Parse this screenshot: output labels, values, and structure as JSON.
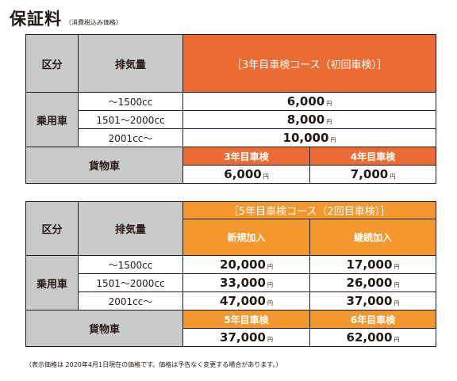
{
  "title": "保証料",
  "title_note": "（消費税込み価格）",
  "colors": {
    "gray": "#c9caca",
    "orange_dark": "#ea6c32",
    "orange_light": "#f2982f",
    "border": "#231815"
  },
  "yen": "円",
  "table1": {
    "col_category": "区分",
    "col_displacement": "排気量",
    "plan_header": "［3年目車検コース（初回車検）］",
    "passenger_label": "乗用車",
    "rows": [
      {
        "displacement": "～1500cc",
        "price": "6,000"
      },
      {
        "displacement": "1501～2000cc",
        "price": "8,000"
      },
      {
        "displacement": "2001cc～",
        "price": "10,000"
      }
    ],
    "cargo_label": "貨物車",
    "cargo_headers": [
      "3年目車検",
      "4年目車検"
    ],
    "cargo_prices": [
      "6,000",
      "7,000"
    ]
  },
  "table2": {
    "col_category": "区分",
    "col_displacement": "排気量",
    "plan_header": "［5年目車検コース（2回目車検）］",
    "sub_headers": [
      "新規加入",
      "継続加入"
    ],
    "passenger_label": "乗用車",
    "rows": [
      {
        "displacement": "～1500cc",
        "new": "20,000",
        "continue": "17,000"
      },
      {
        "displacement": "1501～2000cc",
        "new": "33,000",
        "continue": "26,000"
      },
      {
        "displacement": "2001cc～",
        "new": "47,000",
        "continue": "37,000"
      }
    ],
    "cargo_label": "貨物車",
    "cargo_headers": [
      "5年目車検",
      "6年目車検"
    ],
    "cargo_prices": [
      "37,000",
      "62,000"
    ]
  },
  "footnote": "（表示価格は 2020年4月1日現在の価格です。価格は予告なく変更する場合があります。）"
}
